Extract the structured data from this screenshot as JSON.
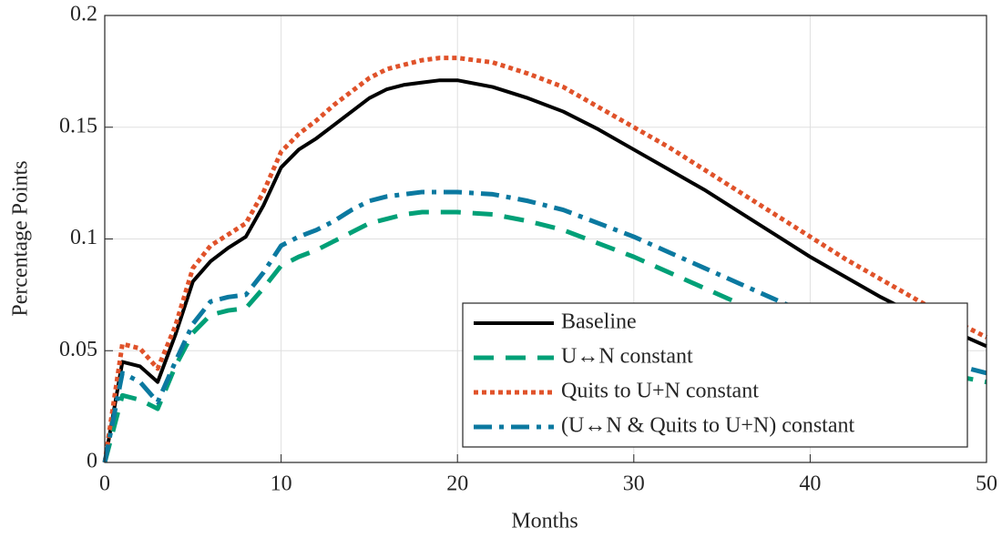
{
  "chart_data": {
    "type": "line",
    "x_label": "Months",
    "y_label": "Percentage Points",
    "x": [
      0,
      1,
      2,
      3,
      4,
      5,
      6,
      7,
      8,
      9,
      10,
      11,
      12,
      13,
      14,
      15,
      16,
      17,
      18,
      19,
      20,
      22,
      24,
      26,
      28,
      30,
      32,
      34,
      36,
      38,
      40,
      42,
      44,
      46,
      48,
      50
    ],
    "series": [
      {
        "name": "Baseline",
        "color": "#000000",
        "linestyle": "solid",
        "values": [
          0,
          0.045,
          0.043,
          0.036,
          0.057,
          0.081,
          0.09,
          0.096,
          0.101,
          0.115,
          0.132,
          0.14,
          0.145,
          0.151,
          0.157,
          0.163,
          0.167,
          0.169,
          0.17,
          0.171,
          0.171,
          0.168,
          0.163,
          0.157,
          0.149,
          0.14,
          0.131,
          0.122,
          0.112,
          0.102,
          0.092,
          0.083,
          0.074,
          0.066,
          0.059,
          0.052
        ]
      },
      {
        "name": "U↔N constant",
        "color": "#00a077",
        "linestyle": "dashed",
        "values": [
          0,
          0.03,
          0.028,
          0.024,
          0.043,
          0.058,
          0.066,
          0.068,
          0.069,
          0.078,
          0.088,
          0.092,
          0.095,
          0.099,
          0.103,
          0.107,
          0.109,
          0.111,
          0.112,
          0.112,
          0.112,
          0.111,
          0.108,
          0.104,
          0.098,
          0.092,
          0.085,
          0.078,
          0.071,
          0.064,
          0.057,
          0.051,
          0.046,
          0.042,
          0.039,
          0.036
        ]
      },
      {
        "name": "Quits to U+N constant",
        "color": "#e0522a",
        "linestyle": "dotted",
        "values": [
          0,
          0.053,
          0.051,
          0.042,
          0.061,
          0.087,
          0.097,
          0.102,
          0.107,
          0.121,
          0.139,
          0.147,
          0.153,
          0.16,
          0.166,
          0.172,
          0.176,
          0.178,
          0.18,
          0.181,
          0.181,
          0.179,
          0.174,
          0.168,
          0.159,
          0.15,
          0.141,
          0.131,
          0.121,
          0.111,
          0.101,
          0.091,
          0.082,
          0.073,
          0.064,
          0.056
        ]
      },
      {
        "name": "(U↔N & Quits to U+N) constant",
        "color": "#0b79a0",
        "linestyle": "dashdot",
        "values": [
          0,
          0.04,
          0.036,
          0.027,
          0.045,
          0.062,
          0.072,
          0.074,
          0.075,
          0.085,
          0.097,
          0.101,
          0.104,
          0.108,
          0.113,
          0.117,
          0.119,
          0.12,
          0.121,
          0.121,
          0.121,
          0.12,
          0.117,
          0.113,
          0.107,
          0.101,
          0.094,
          0.087,
          0.08,
          0.073,
          0.066,
          0.059,
          0.053,
          0.048,
          0.044,
          0.04
        ]
      }
    ],
    "xlim": [
      0,
      50
    ],
    "xticks": [
      0,
      10,
      20,
      30,
      40,
      50
    ],
    "ylim": [
      0,
      0.2
    ],
    "yticks": [
      0,
      0.05,
      0.1,
      0.15,
      0.2
    ],
    "grid": true,
    "legend": "southeast"
  }
}
